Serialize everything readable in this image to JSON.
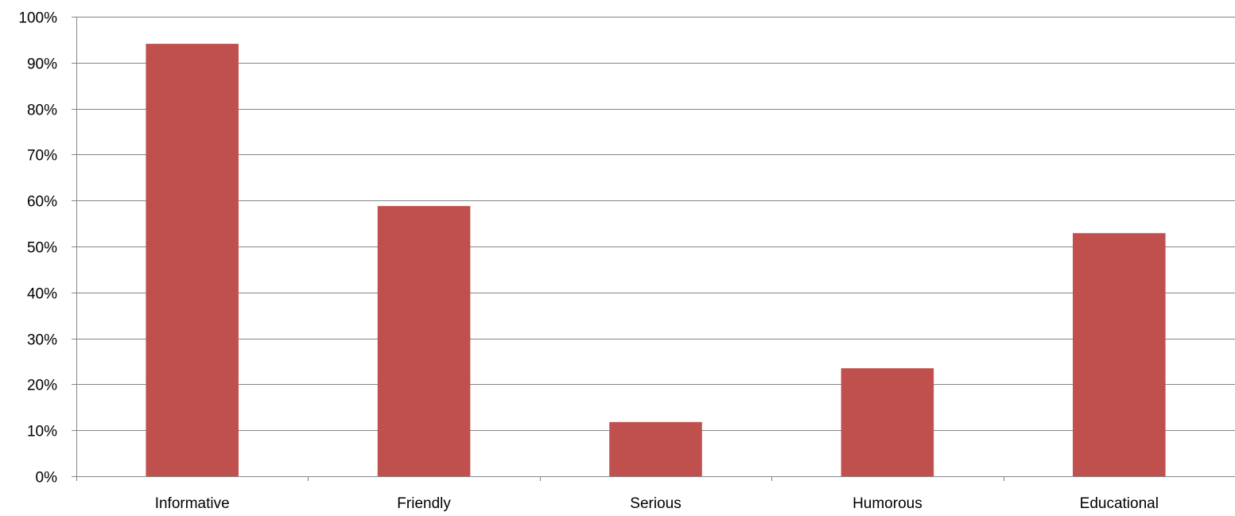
{
  "chart_data": {
    "type": "bar",
    "categories": [
      "Informative",
      "Friendly",
      "Serious",
      "Humorous",
      "Educational"
    ],
    "values": [
      94.1,
      58.8,
      11.8,
      23.5,
      52.9
    ],
    "ylim": [
      0,
      100
    ],
    "yticks": [
      "0%",
      "10%",
      "20%",
      "30%",
      "40%",
      "50%",
      "60%",
      "70%",
      "80%",
      "90%",
      "100%"
    ],
    "title": "",
    "xlabel": "",
    "ylabel": "",
    "grid": true,
    "legend": "none",
    "colors": {
      "bar": "#c0504d",
      "grid": "#868686",
      "axis": "#868686",
      "text": "#000000"
    }
  }
}
